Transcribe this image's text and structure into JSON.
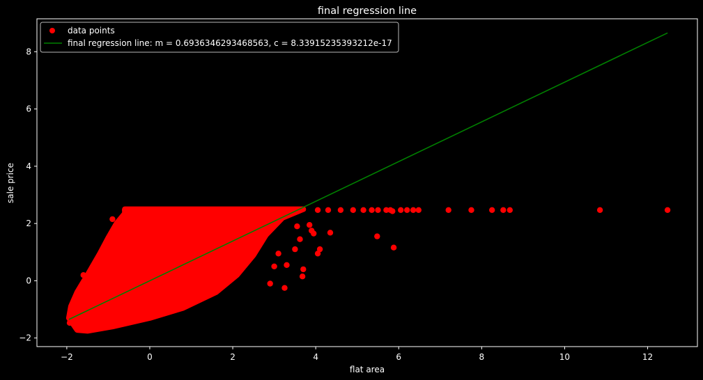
{
  "chart_data": {
    "type": "scatter",
    "title": "final regression line",
    "xlabel": "flat area",
    "ylabel": "sale price",
    "xlim": [
      -2.72,
      13.2
    ],
    "ylim": [
      -2.3,
      9.15
    ],
    "xticks": [
      -2,
      0,
      2,
      4,
      6,
      8,
      10,
      12
    ],
    "yticks": [
      -2,
      0,
      2,
      4,
      6,
      8
    ],
    "grid": false,
    "legend_position": "top-left",
    "colors": {
      "background": "#000000",
      "points": "#ff0000",
      "line": "#008000",
      "text": "#ffffff",
      "spines": "#ffffff"
    },
    "series": [
      {
        "name": "data points",
        "kind": "scatter",
        "cluster_outline": [
          [
            -1.95,
            -1.3
          ],
          [
            -1.9,
            -0.9
          ],
          [
            -1.75,
            -0.4
          ],
          [
            -1.5,
            0.2
          ],
          [
            -1.2,
            0.95
          ],
          [
            -1.0,
            1.5
          ],
          [
            -0.8,
            2.0
          ],
          [
            -0.6,
            2.35
          ],
          [
            -0.6,
            2.5
          ],
          [
            3.7,
            2.5
          ],
          [
            3.2,
            2.2
          ],
          [
            2.8,
            1.6
          ],
          [
            2.5,
            0.9
          ],
          [
            2.1,
            0.2
          ],
          [
            1.6,
            -0.4
          ],
          [
            0.8,
            -0.95
          ],
          [
            0.0,
            -1.3
          ],
          [
            -0.9,
            -1.6
          ],
          [
            -1.5,
            -1.75
          ],
          [
            -1.75,
            -1.72
          ]
        ],
        "points": [
          [
            -1.93,
            -1.47
          ],
          [
            -1.6,
            0.2
          ],
          [
            -0.9,
            2.15
          ],
          [
            -0.6,
            2.47
          ],
          [
            3.0,
            2.47
          ],
          [
            3.2,
            2.3
          ],
          [
            3.55,
            1.9
          ],
          [
            3.62,
            1.45
          ],
          [
            3.5,
            1.1
          ],
          [
            3.7,
            0.4
          ],
          [
            3.68,
            0.15
          ],
          [
            3.0,
            0.5
          ],
          [
            3.3,
            0.55
          ],
          [
            3.25,
            -0.25
          ],
          [
            2.9,
            -0.1
          ],
          [
            3.1,
            0.95
          ],
          [
            3.85,
            1.95
          ],
          [
            3.9,
            1.75
          ],
          [
            3.95,
            1.65
          ],
          [
            4.05,
            0.95
          ],
          [
            4.1,
            1.1
          ],
          [
            4.35,
            1.68
          ],
          [
            4.05,
            2.47
          ],
          [
            4.3,
            2.47
          ],
          [
            4.6,
            2.47
          ],
          [
            4.9,
            2.47
          ],
          [
            5.15,
            2.47
          ],
          [
            5.35,
            2.47
          ],
          [
            5.5,
            2.47
          ],
          [
            5.7,
            2.47
          ],
          [
            5.8,
            2.47
          ],
          [
            5.85,
            2.43
          ],
          [
            6.05,
            2.47
          ],
          [
            6.2,
            2.47
          ],
          [
            6.35,
            2.47
          ],
          [
            6.48,
            2.47
          ],
          [
            7.2,
            2.47
          ],
          [
            7.75,
            2.47
          ],
          [
            8.25,
            2.47
          ],
          [
            8.52,
            2.47
          ],
          [
            8.68,
            2.47
          ],
          [
            10.85,
            2.47
          ],
          [
            12.48,
            2.47
          ],
          [
            5.48,
            1.55
          ],
          [
            5.88,
            1.16
          ]
        ]
      },
      {
        "name": "final regression line: m = 0.6936346293468563, c = 8.33915235393212e-17",
        "kind": "line",
        "x": [
          -1.95,
          12.48
        ],
        "y": [
          -1.3525875,
          8.6565602
        ]
      }
    ]
  }
}
